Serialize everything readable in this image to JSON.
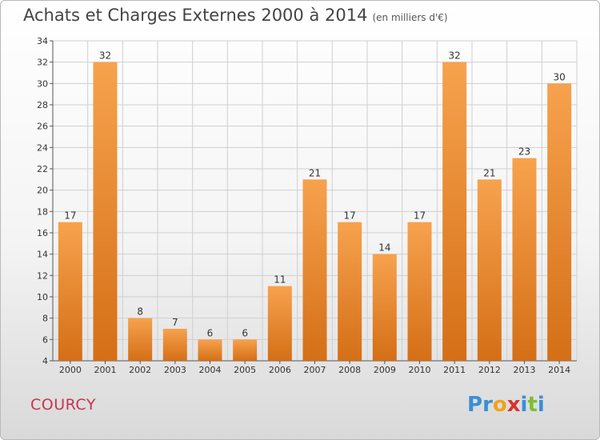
{
  "header": {
    "title": "Achats et Charges Externes 2000 à 2014",
    "subtitle": "(en milliers d'€)"
  },
  "footer": {
    "city": "COURCY",
    "logo_letters": [
      {
        "char": "P",
        "color": "#3a8fd6"
      },
      {
        "char": "r",
        "color": "#3a8fd6"
      },
      {
        "char": "o",
        "color": "#f0a21a"
      },
      {
        "char": "x",
        "color": "#d9322d"
      },
      {
        "char": "i",
        "color": "#3a8fd6"
      },
      {
        "char": "t",
        "color": "#7cbf2f"
      },
      {
        "char": "i",
        "color": "#3a8fd6"
      }
    ]
  },
  "colors": {
    "bar_top": "#f7a24e",
    "bar_bottom": "#d46f16",
    "grid": "#cfcfcf"
  },
  "chart_data": {
    "type": "bar",
    "title": "Achats et Charges Externes 2000 à 2014",
    "subtitle": "(en milliers d'€)",
    "xlabel": "",
    "ylabel": "",
    "categories": [
      "2000",
      "2001",
      "2002",
      "2003",
      "2004",
      "2005",
      "2006",
      "2007",
      "2008",
      "2009",
      "2010",
      "2011",
      "2012",
      "2013",
      "2014"
    ],
    "values": [
      17,
      32,
      8,
      7,
      6,
      6,
      11,
      21,
      17,
      14,
      17,
      32,
      21,
      23,
      30
    ],
    "ylim": [
      4,
      34
    ],
    "yticks": [
      4,
      6,
      8,
      10,
      12,
      14,
      16,
      18,
      20,
      22,
      24,
      26,
      28,
      30,
      32,
      34
    ],
    "grid": true,
    "data_labels": true
  }
}
